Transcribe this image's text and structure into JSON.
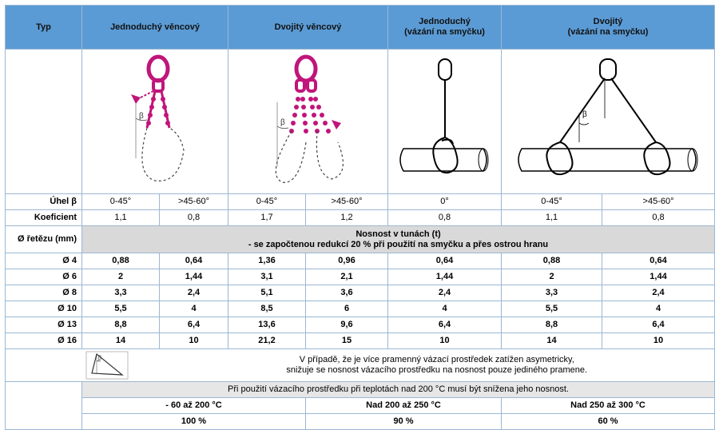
{
  "header": {
    "typ": "Typ",
    "col1": "Jednoduchý věncový",
    "col2": "Dvojitý věncový",
    "col3_line1": "Jednoduchý",
    "col3_line2": "(vázání na smyčku)",
    "col4_line1": "Dvojitý",
    "col4_line2": "(vázání na smyčku)"
  },
  "figure_labels": {
    "beta": "β"
  },
  "angle": {
    "label": "Úhel β",
    "values": [
      "0-45°",
      ">45-60°",
      "0-45°",
      ">45-60°",
      "0°",
      "0-45°",
      ">45-60°"
    ]
  },
  "coef": {
    "label": "Koeficient",
    "values": [
      "1,1",
      "0,8",
      "1,7",
      "1,2",
      "0,8",
      "1,1",
      "0,8"
    ]
  },
  "diameter_label": "Ø řetězu (mm)",
  "capacity": {
    "line1": "Nosnost v tunách (t)",
    "line2": "- se započtenou redukcí 20 % při použití na smyčku a přes ostrou hranu"
  },
  "rows": [
    {
      "d": "Ø 4",
      "v": [
        "0,88",
        "0,64",
        "1,36",
        "0,96",
        "0,64",
        "0,88",
        "0,64"
      ]
    },
    {
      "d": "Ø 6",
      "v": [
        "2",
        "1,44",
        "3,1",
        "2,1",
        "1,44",
        "2",
        "1,44"
      ]
    },
    {
      "d": "Ø 8",
      "v": [
        "3,3",
        "2,4",
        "5,1",
        "3,6",
        "2,4",
        "3,3",
        "2,4"
      ]
    },
    {
      "d": "Ø 10",
      "v": [
        "5,5",
        "4",
        "8,5",
        "6",
        "4",
        "5,5",
        "4"
      ]
    },
    {
      "d": "Ø 13",
      "v": [
        "8,8",
        "6,4",
        "13,6",
        "9,6",
        "6,4",
        "8,8",
        "6,4"
      ]
    },
    {
      "d": "Ø 16",
      "v": [
        "14",
        "10",
        "21,2",
        "15",
        "10",
        "14",
        "10"
      ]
    }
  ],
  "note": {
    "line1": "V případě, že je více pramenný vázací prostředek zatížen asymetricky,",
    "line2": "snižuje se nosnost vázacího prostředku na nosnost pouze jediného pramene."
  },
  "temp": {
    "title": "Při použití vázacího prostředku při teplotách nad 200 °C musí být snížena jeho nosnost.",
    "ranges": [
      "- 60 až 200 °C",
      "Nad 200 až 250 °C",
      "Nad 250 až 300 °C"
    ],
    "percents": [
      "100 %",
      "90 %",
      "60 %"
    ]
  }
}
